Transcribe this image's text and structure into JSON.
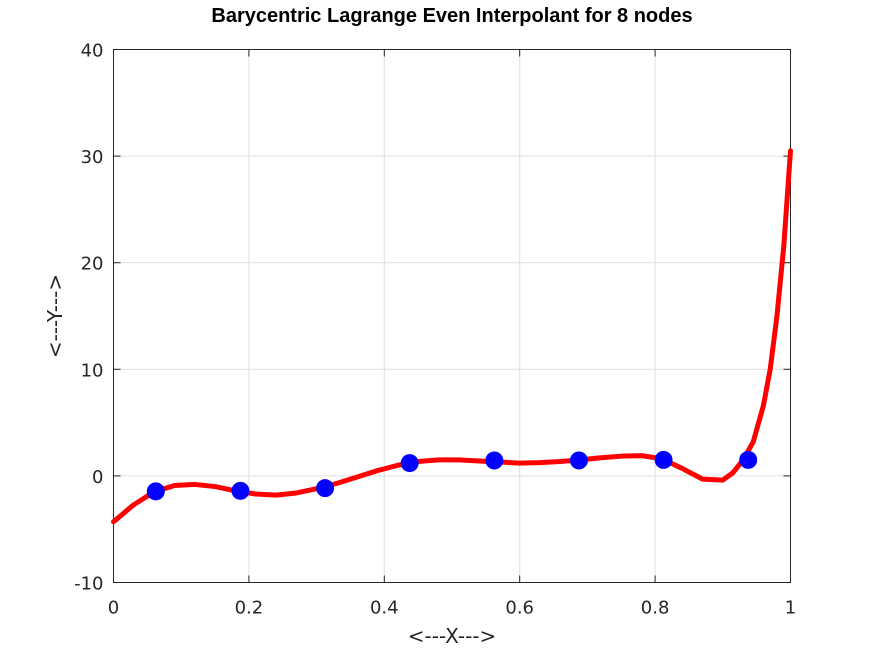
{
  "chart_data": {
    "type": "line",
    "title": "Barycentric Lagrange Even Interpolant for 8 nodes",
    "xlabel": "<---X--->",
    "ylabel": "<---Y--->",
    "xlim": [
      0,
      1
    ],
    "ylim": [
      -10,
      40
    ],
    "xticks": [
      0,
      0.2,
      0.4,
      0.6,
      0.8,
      1
    ],
    "xtick_labels": [
      "0",
      "0.2",
      "0.4",
      "0.6",
      "0.8",
      "1"
    ],
    "yticks": [
      -10,
      0,
      10,
      20,
      30,
      40
    ],
    "ytick_labels": [
      "-10",
      "0",
      "10",
      "20",
      "30",
      "40"
    ],
    "grid": true,
    "series": [
      {
        "kind": "line",
        "color": "#ff0000",
        "x": [
          0.0,
          0.03,
          0.06,
          0.09,
          0.12,
          0.15,
          0.18,
          0.21,
          0.24,
          0.27,
          0.3,
          0.33,
          0.36,
          0.39,
          0.42,
          0.45,
          0.48,
          0.51,
          0.54,
          0.57,
          0.6,
          0.63,
          0.66,
          0.69,
          0.72,
          0.75,
          0.78,
          0.81,
          0.84,
          0.87,
          0.9,
          0.915,
          0.93,
          0.945,
          0.96,
          0.97,
          0.98,
          0.99,
          1.0
        ],
        "y": [
          -4.3,
          -2.7,
          -1.5,
          -0.9,
          -0.8,
          -1.0,
          -1.4,
          -1.7,
          -1.8,
          -1.6,
          -1.2,
          -0.7,
          -0.1,
          0.5,
          1.0,
          1.35,
          1.5,
          1.5,
          1.4,
          1.3,
          1.2,
          1.25,
          1.35,
          1.5,
          1.7,
          1.85,
          1.9,
          1.6,
          0.7,
          -0.3,
          -0.4,
          0.3,
          1.5,
          3.2,
          6.6,
          10.0,
          15.0,
          21.5,
          30.5
        ]
      },
      {
        "kind": "markers",
        "color": "#0000ff",
        "x": [
          0.0625,
          0.1875,
          0.3125,
          0.4375,
          0.5625,
          0.6875,
          0.8125,
          0.9375
        ],
        "y": [
          -1.45,
          -1.4,
          -1.15,
          1.2,
          1.45,
          1.45,
          1.5,
          1.5
        ]
      }
    ]
  }
}
